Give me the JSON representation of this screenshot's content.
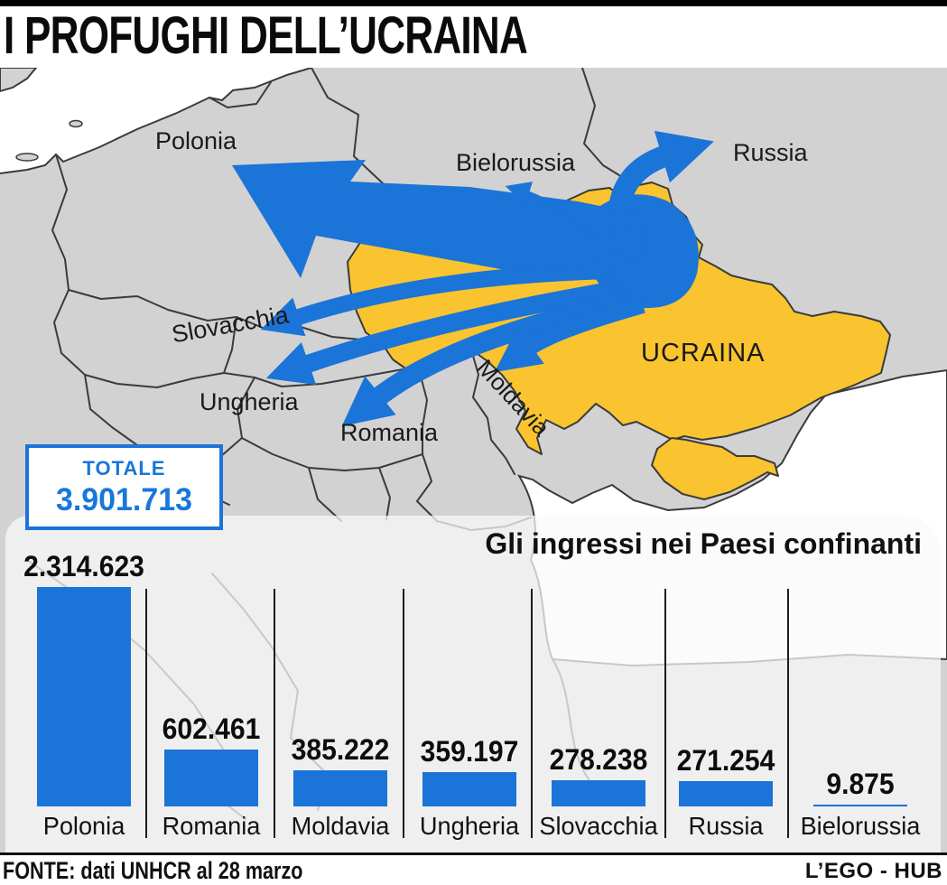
{
  "header": {
    "title": "I PROFUGHI DELL’UCRAINA"
  },
  "map": {
    "labels": {
      "polonia": "Polonia",
      "bielorussia": "Bielorussia",
      "russia": "Russia",
      "slovacchia": "Slovacchia",
      "ungheria": "Ungheria",
      "romania": "Romania",
      "moldavia": "Moldavia",
      "ucraina": "UCRAINA"
    },
    "colors": {
      "ukraine": "#F9C42F",
      "land": "#D2D2D2",
      "sea": "#FFFFFF",
      "flow": "#1B74D8"
    }
  },
  "totale": {
    "label": "TOTALE",
    "value": "3.901.713"
  },
  "chart_data": {
    "type": "bar",
    "title": "Gli ingressi nei Paesi confinanti",
    "categories": [
      "Polonia",
      "Romania",
      "Moldavia",
      "Ungheria",
      "Slovacchia",
      "Russia",
      "Bielorussia"
    ],
    "values": [
      2314623,
      602461,
      385222,
      359197,
      278238,
      271254,
      9875
    ],
    "value_labels": [
      "2.314.623",
      "602.461",
      "385.222",
      "359.197",
      "278.238",
      "271.254",
      "9.875"
    ],
    "ylim": [
      0,
      2314623
    ],
    "bar_color": "#1B74D8",
    "grid": false,
    "legend": false
  },
  "footer": {
    "source": "FONTE: dati UNHCR al 28 marzo",
    "brand": "L’EGO - HUB"
  }
}
